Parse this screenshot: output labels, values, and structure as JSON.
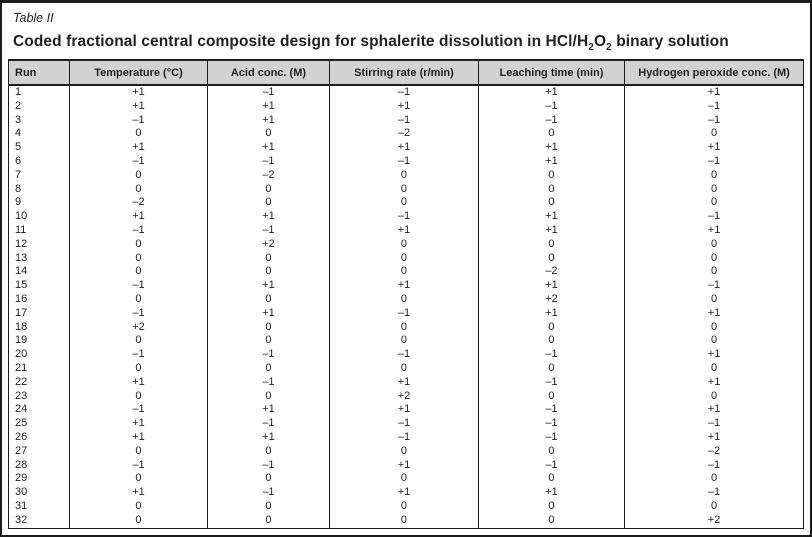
{
  "figure": {
    "label": "Table II",
    "title_segments": [
      {
        "text": "Coded fractional central composite design for sphalerite dissolution in HCl/H",
        "sub": false
      },
      {
        "text": "2",
        "sub": true
      },
      {
        "text": "O",
        "sub": false
      },
      {
        "text": "2",
        "sub": true
      },
      {
        "text": " binary solution",
        "sub": false
      }
    ]
  },
  "table": {
    "columns": [
      "Run",
      "Temperature (°C)",
      "Acid conc. (M)",
      "Stirring rate (r/min)",
      "Leaching time (min)",
      "Hydrogen peroxide conc. (M)"
    ],
    "rows": [
      [
        "1",
        "+1",
        "–1",
        "–1",
        "+1",
        "+1"
      ],
      [
        "2",
        "+1",
        "+1",
        "+1",
        "–1",
        "–1"
      ],
      [
        "3",
        "–1",
        "+1",
        "–1",
        "–1",
        "–1"
      ],
      [
        "4",
        "0",
        "0",
        "–2",
        "0",
        "0"
      ],
      [
        "5",
        "+1",
        "+1",
        "+1",
        "+1",
        "+1"
      ],
      [
        "6",
        "–1",
        "–1",
        "–1",
        "+1",
        "–1"
      ],
      [
        "7",
        "0",
        "–2",
        "0",
        "0",
        "0"
      ],
      [
        "8",
        "0",
        "0",
        "0",
        "0",
        "0"
      ],
      [
        "9",
        "–2",
        "0",
        "0",
        "0",
        "0"
      ],
      [
        "10",
        "+1",
        "+1",
        "–1",
        "+1",
        "–1"
      ],
      [
        "11",
        "–1",
        "–1",
        "+1",
        "+1",
        "+1"
      ],
      [
        "12",
        "0",
        "+2",
        "0",
        "0",
        "0"
      ],
      [
        "13",
        "0",
        "0",
        "0",
        "0",
        "0"
      ],
      [
        "14",
        "0",
        "0",
        "0",
        "–2",
        "0"
      ],
      [
        "15",
        "–1",
        "+1",
        "+1",
        "+1",
        "–1"
      ],
      [
        "16",
        "0",
        "0",
        "0",
        "+2",
        "0"
      ],
      [
        "17",
        "–1",
        "+1",
        "–1",
        "+1",
        "+1"
      ],
      [
        "18",
        "+2",
        "0",
        "0",
        "0",
        "0"
      ],
      [
        "19",
        "0",
        "0",
        "0",
        "0",
        "0"
      ],
      [
        "20",
        "–1",
        "–1",
        "–1",
        "–1",
        "+1"
      ],
      [
        "21",
        "0",
        "0",
        "0",
        "0",
        "0"
      ],
      [
        "22",
        "+1",
        "–1",
        "+1",
        "–1",
        "+1"
      ],
      [
        "23",
        "0",
        "0",
        "+2",
        "0",
        "0"
      ],
      [
        "24",
        "–1",
        "+1",
        "+1",
        "–1",
        "+1"
      ],
      [
        "25",
        "+1",
        "–1",
        "–1",
        "–1",
        "–1"
      ],
      [
        "26",
        "+1",
        "+1",
        "–1",
        "–1",
        "+1"
      ],
      [
        "27",
        "0",
        "0",
        "0",
        "0",
        "–2"
      ],
      [
        "28",
        "–1",
        "–1",
        "+1",
        "–1",
        "–1"
      ],
      [
        "29",
        "0",
        "0",
        "0",
        "0",
        "0"
      ],
      [
        "30",
        "+1",
        "–1",
        "+1",
        "+1",
        "–1"
      ],
      [
        "31",
        "0",
        "0",
        "0",
        "0",
        "0"
      ],
      [
        "32",
        "0",
        "0",
        "0",
        "0",
        "+2"
      ]
    ]
  },
  "colors": {
    "header_bg": "#d2d2d2",
    "border": "#1c1c1c",
    "text": "#231f20"
  }
}
